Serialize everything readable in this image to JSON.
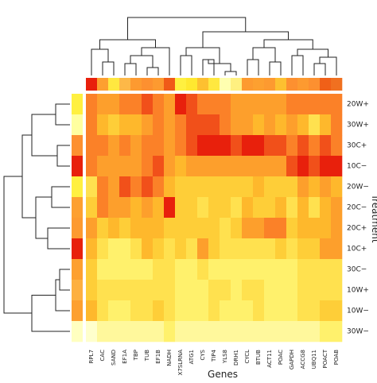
{
  "chart_data": {
    "type": "heatmap",
    "x_label": "Genes",
    "y_label": "Treatment",
    "categories": [
      "RPL7",
      "CAC",
      "SAND",
      "EF1A",
      "TBP",
      "TUB",
      "EF1B",
      "NADH",
      "X7SLRNA",
      "ATG1",
      "CYS",
      "TIP4",
      "YLS8",
      "DRH1",
      "CYCL",
      "BTUB",
      "ACT11",
      "POAC",
      "GAPDH",
      "ACCG8",
      "UBQ11",
      "POACT",
      "POAB"
    ],
    "rows": [
      "20W+",
      "30W+",
      "30C+",
      "10C−",
      "20W−",
      "20C−",
      "20C+",
      "10C+",
      "30C−",
      "10W+",
      "10W−",
      "30W−"
    ],
    "values": [
      [
        7,
        6,
        6,
        7,
        7,
        8,
        7,
        6,
        9,
        8,
        7,
        7,
        7,
        6,
        6,
        6,
        6,
        6,
        7,
        7,
        7,
        7,
        7
      ],
      [
        7,
        5,
        4,
        5,
        5,
        6,
        7,
        6,
        7,
        8,
        8,
        8,
        7,
        6,
        6,
        5,
        6,
        5,
        6,
        5,
        3,
        5,
        7
      ],
      [
        7,
        7,
        6,
        7,
        6,
        7,
        7,
        6,
        7,
        8,
        9,
        9,
        9,
        8,
        9,
        9,
        8,
        8,
        7,
        8,
        7,
        8,
        7
      ],
      [
        7,
        6,
        6,
        6,
        6,
        7,
        8,
        6,
        5,
        6,
        6,
        6,
        6,
        6,
        6,
        6,
        6,
        6,
        8,
        9,
        8,
        9,
        9
      ],
      [
        3,
        7,
        6,
        8,
        7,
        8,
        7,
        5,
        4,
        4,
        4,
        4,
        4,
        4,
        4,
        5,
        4,
        4,
        4,
        6,
        5,
        6,
        5
      ],
      [
        4,
        7,
        6,
        6,
        5,
        6,
        5,
        9,
        4,
        4,
        3,
        4,
        4,
        3,
        5,
        4,
        4,
        5,
        3,
        5,
        3,
        5,
        6
      ],
      [
        6,
        4,
        5,
        4,
        5,
        5,
        5,
        4,
        4,
        4,
        4,
        4,
        3,
        4,
        6,
        6,
        7,
        7,
        4,
        5,
        5,
        5,
        6
      ],
      [
        5,
        3,
        2,
        2,
        3,
        5,
        4,
        3,
        4,
        3,
        6,
        4,
        3,
        3,
        3,
        3,
        3,
        4,
        3,
        4,
        4,
        6,
        6
      ],
      [
        4,
        2,
        2,
        2,
        2,
        2,
        3,
        3,
        2,
        2,
        3,
        2,
        2,
        2,
        2,
        2,
        2,
        2,
        2,
        3,
        3,
        3,
        3
      ],
      [
        4,
        3,
        3,
        3,
        3,
        3,
        3,
        3,
        2,
        2,
        2,
        3,
        3,
        2,
        3,
        3,
        2,
        2,
        2,
        3,
        3,
        3,
        3
      ],
      [
        5,
        3,
        2,
        2,
        3,
        3,
        4,
        3,
        2,
        2,
        2,
        3,
        2,
        2,
        2,
        3,
        2,
        2,
        2,
        3,
        3,
        4,
        4
      ],
      [
        0,
        1,
        1,
        1,
        1,
        1,
        1,
        2,
        1,
        1,
        1,
        1,
        1,
        1,
        1,
        1,
        1,
        1,
        1,
        1,
        1,
        2,
        2
      ]
    ],
    "colormap": [
      "#ffffcc",
      "#ffef60",
      "#fec42c",
      "#fd8d2c",
      "#e8200c"
    ],
    "column_colors": [
      "#e8200c",
      "#fda030",
      "#ffe840",
      "#fdb848",
      "#fd9a30",
      "#fd9030",
      "#fd9a30",
      "#f05a18",
      "#fff040",
      "#ffe830",
      "#fdc030",
      "#ffe840",
      "#ffffb0",
      "#fff080",
      "#fd9a30",
      "#fda030",
      "#fd9a30",
      "#fdc030",
      "#fd9030",
      "#fd9a30",
      "#fd9030",
      "#f06018",
      "#f07020"
    ],
    "row_colors": [
      "#fff040",
      "#ffffa0",
      "#fd9030",
      "#e8200c",
      "#fff040",
      "#fda030",
      "#fd9a30",
      "#e8200c",
      "#fda030",
      "#fdb040",
      "#fda030",
      "#ffffc0"
    ]
  }
}
